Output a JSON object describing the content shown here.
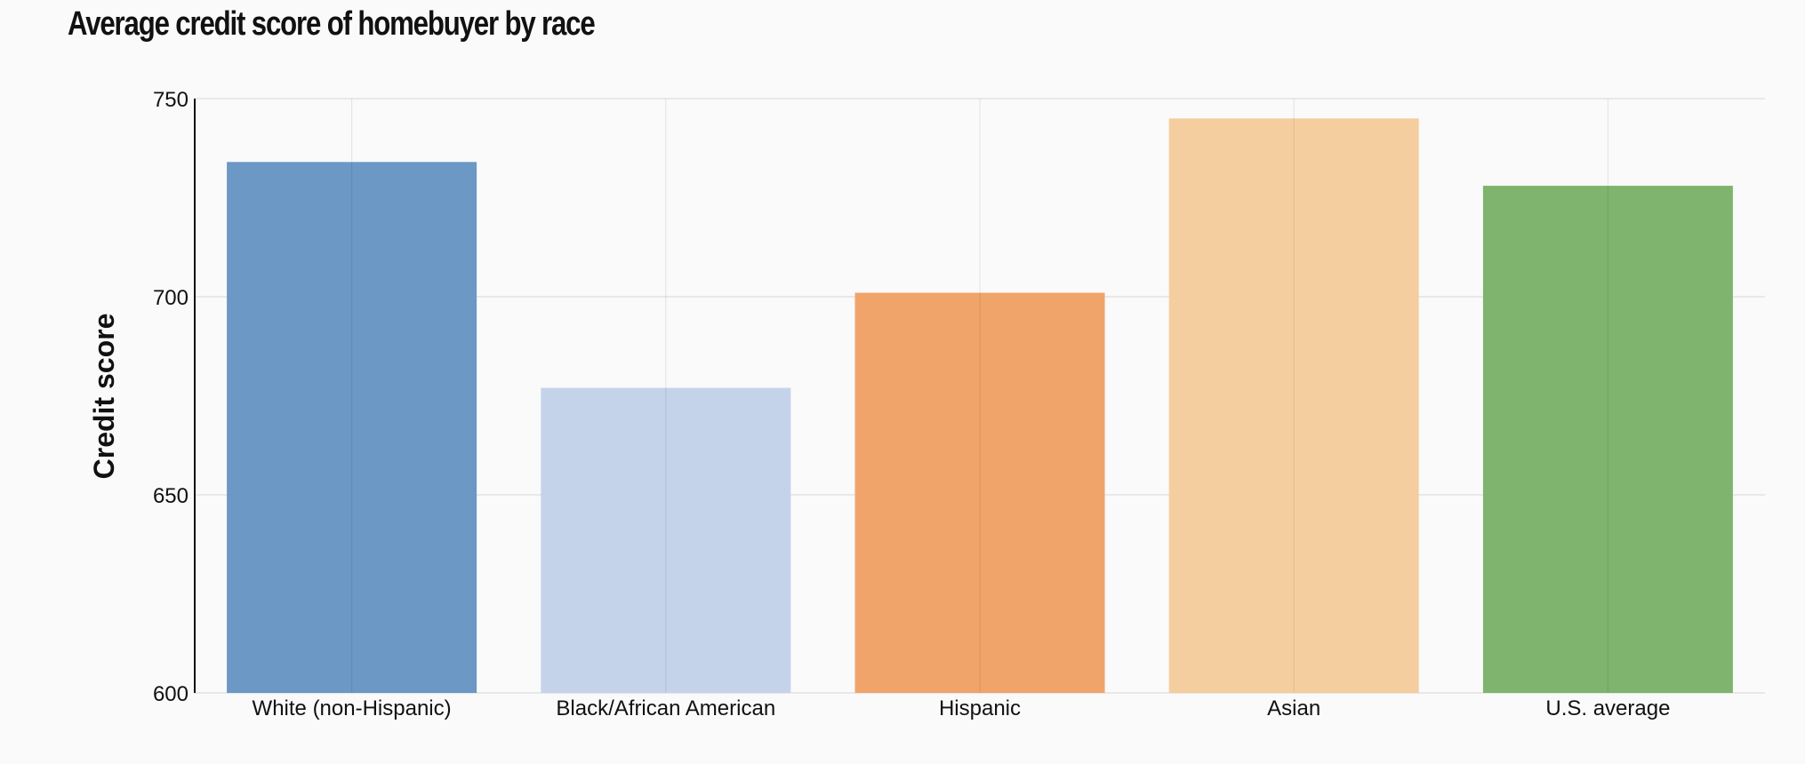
{
  "chart_data": {
    "type": "bar",
    "title": "Average credit score of homebuyer by race",
    "xlabel": "",
    "ylabel": "Credit score",
    "categories": [
      "White (non-Hispanic)",
      "Black/African American",
      "Hispanic",
      "Asian",
      "U.S. average"
    ],
    "values": [
      734,
      677,
      701,
      745,
      728
    ],
    "colors": [
      "#6b98c4",
      "#c5d3ea",
      "#f0a46a",
      "#f5cea0",
      "#7eb46e"
    ],
    "ylim": [
      600,
      750
    ],
    "yticks": [
      600,
      650,
      700,
      750
    ],
    "grid": true,
    "legend": "none"
  }
}
